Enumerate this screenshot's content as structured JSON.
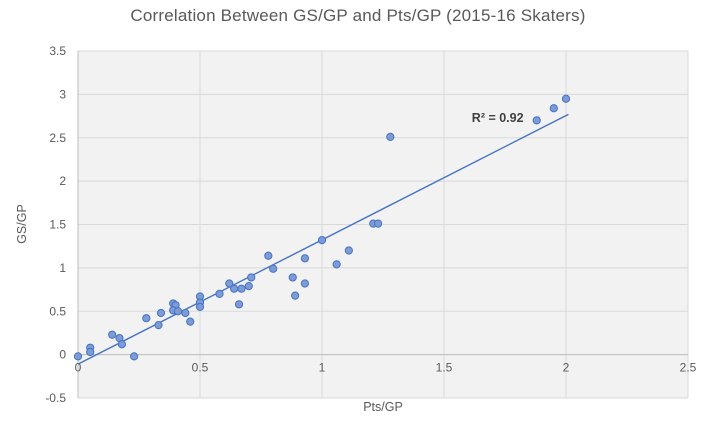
{
  "chart_data": {
    "type": "scatter",
    "title": "Correlation Between GS/GP and Pts/GP (2015-16 Skaters)",
    "xlabel": "Pts/GP",
    "ylabel": "GS/GP",
    "xlim": [
      0,
      2.5
    ],
    "ylim": [
      -0.5,
      3.5
    ],
    "x_ticks": [
      0,
      0.5,
      1,
      1.5,
      2,
      2.5
    ],
    "y_ticks": [
      -0.5,
      0,
      0.5,
      1,
      1.5,
      2,
      2.5,
      3,
      3.5
    ],
    "grid": true,
    "legend": "none",
    "annotation": {
      "text": "R² = 0.92",
      "x": 1.72,
      "y": 2.73
    },
    "r_squared": 0.92,
    "points": [
      [
        0.0,
        -0.02
      ],
      [
        0.05,
        0.08
      ],
      [
        0.05,
        0.03
      ],
      [
        0.14,
        0.23
      ],
      [
        0.17,
        0.19
      ],
      [
        0.18,
        0.12
      ],
      [
        0.23,
        -0.02
      ],
      [
        0.28,
        0.42
      ],
      [
        0.33,
        0.34
      ],
      [
        0.34,
        0.48
      ],
      [
        0.39,
        0.59
      ],
      [
        0.4,
        0.57
      ],
      [
        0.39,
        0.51
      ],
      [
        0.41,
        0.5
      ],
      [
        0.44,
        0.48
      ],
      [
        0.46,
        0.38
      ],
      [
        0.5,
        0.67
      ],
      [
        0.5,
        0.6
      ],
      [
        0.5,
        0.55
      ],
      [
        0.58,
        0.7
      ],
      [
        0.62,
        0.82
      ],
      [
        0.64,
        0.76
      ],
      [
        0.66,
        0.58
      ],
      [
        0.67,
        0.76
      ],
      [
        0.7,
        0.79
      ],
      [
        0.71,
        0.89
      ],
      [
        0.78,
        1.14
      ],
      [
        0.8,
        0.99
      ],
      [
        0.88,
        0.89
      ],
      [
        0.89,
        0.68
      ],
      [
        0.93,
        1.11
      ],
      [
        0.93,
        0.82
      ],
      [
        1.0,
        1.32
      ],
      [
        1.06,
        1.04
      ],
      [
        1.11,
        1.2
      ],
      [
        1.21,
        1.51
      ],
      [
        1.23,
        1.51
      ],
      [
        1.28,
        2.51
      ],
      [
        1.88,
        2.7
      ],
      [
        1.95,
        2.84
      ],
      [
        2.0,
        2.95
      ]
    ],
    "trendline": {
      "x1": 0,
      "y1": -0.11,
      "x2": 2.01,
      "y2": 2.77
    },
    "colors": {
      "marker_fill": "#7D9BD6",
      "marker_stroke": "#4472C4",
      "trendline": "#4472C4",
      "gridline": "#D9D9D9",
      "axis_line": "#BFBFBF",
      "plot_bg": "#F2F2F2",
      "title_text": "#595959",
      "tick_text": "#595959",
      "annotation_text": "#404040"
    }
  }
}
